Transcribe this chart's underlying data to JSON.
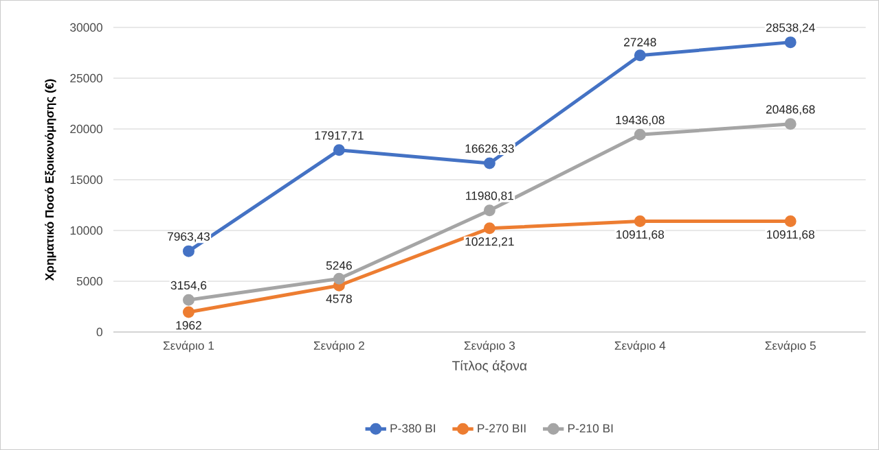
{
  "chart_data": {
    "type": "line",
    "xlabel": "Τίτλος άξονα",
    "ylabel": "Χρηματικό Ποσό Εξοικονόμησης (€)",
    "categories": [
      "Σενάριο 1",
      "Σενάριο 2",
      "Σενάριο 3",
      "Σενάριο 4",
      "Σενάριο 5"
    ],
    "series": [
      {
        "name": "P-380 BI",
        "color": "#4472c4",
        "values": [
          7963.43,
          17917.71,
          16626.33,
          27248,
          28538.24
        ],
        "value_labels": [
          "7963,43",
          "17917,71",
          "16626,33",
          "27248",
          "28538,24"
        ]
      },
      {
        "name": "P-270 BII",
        "color": "#ed7d31",
        "values": [
          1962,
          4578,
          10212.21,
          10911.68,
          10911.68
        ],
        "value_labels": [
          "1962",
          "4578",
          "10212,21",
          "10911,68",
          "10911,68"
        ]
      },
      {
        "name": "P-210 BI",
        "color": "#a5a5a5",
        "values": [
          3154.6,
          5246,
          11980.81,
          19436.08,
          20486.68
        ],
        "value_labels": [
          "3154,6",
          "5246",
          "11980,81",
          "19436,08",
          "20486,68"
        ]
      }
    ],
    "ylim": [
      0,
      30000
    ],
    "yticks": [
      0,
      5000,
      10000,
      15000,
      20000,
      25000,
      30000
    ],
    "grid": "y",
    "legend": "bottom",
    "marker": "circle",
    "line_style": "solid"
  }
}
